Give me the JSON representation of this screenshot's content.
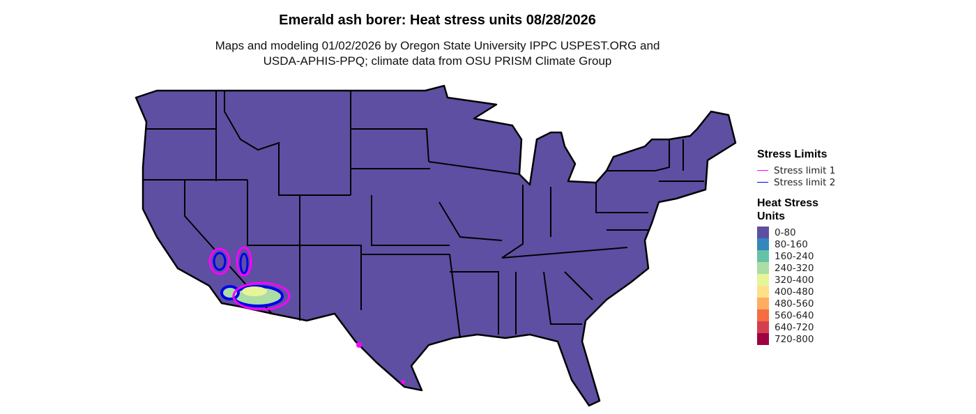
{
  "title": "Emerald ash borer: Heat stress units 08/28/2026",
  "subtitle_line1": "Maps and modeling 01/02/2026 by Oregon State University IPPC USPEST.ORG and",
  "subtitle_line2": "USDA-APHIS-PPQ; climate data from OSU PRISM Climate Group",
  "legend": {
    "stress_title": "Stress Limits",
    "stress_limits": [
      {
        "label": "Stress limit 1",
        "color": "#ff00ff"
      },
      {
        "label": "Stress limit 2",
        "color": "#0000ee"
      }
    ],
    "heat_title_line1": "Heat Stress",
    "heat_title_line2": "Units",
    "classes": [
      {
        "label": "0-80",
        "color": "#5e4fa2"
      },
      {
        "label": "80-160",
        "color": "#3288bd"
      },
      {
        "label": "160-240",
        "color": "#66c2a5"
      },
      {
        "label": "240-320",
        "color": "#abdda4"
      },
      {
        "label": "320-400",
        "color": "#e6f598"
      },
      {
        "label": "400-480",
        "color": "#fee08b"
      },
      {
        "label": "480-560",
        "color": "#fdae61"
      },
      {
        "label": "560-640",
        "color": "#f46d43"
      },
      {
        "label": "640-720",
        "color": "#d53e4f"
      },
      {
        "label": "720-800",
        "color": "#9e0142"
      }
    ]
  },
  "map_data": {
    "region": "Conterminous United States",
    "dominant_class": "0-80",
    "elevated_areas": "Southeastern California and southwestern Arizona (160-400 range) with stress limit 1 and 2 contours; small stress limit 1 spots in southern Texas"
  }
}
